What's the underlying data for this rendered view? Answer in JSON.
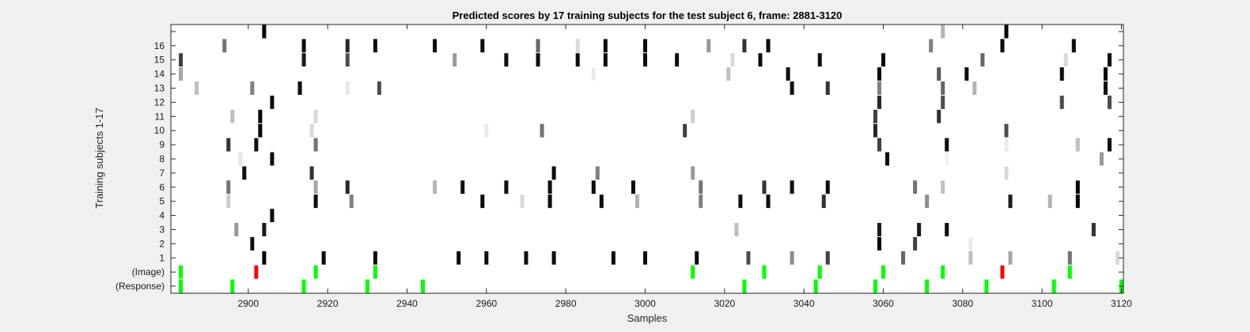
{
  "chart_data": {
    "type": "heatmap",
    "title": "Predicted scores by 17 training subjects for the test subject 6, frame: 2881-3120",
    "xlabel": "Samples",
    "ylabel": "Training subjects 1-17",
    "xlim": [
      2881,
      3120
    ],
    "x_ticks": [
      2900,
      2920,
      2940,
      2960,
      2980,
      3000,
      3020,
      3040,
      3060,
      3080,
      3100,
      3120
    ],
    "y_tick_labels": [
      "(Response)",
      "(Image)",
      "1",
      "2",
      "3",
      "4",
      "5",
      "6",
      "7",
      "8",
      "9",
      "10",
      "11",
      "12",
      "13",
      "14",
      "15",
      "16",
      ""
    ],
    "grid": false,
    "colors": {
      "background": "#f0f0f0",
      "plot_background": "#ffffff",
      "green": "#00ff00",
      "red": "#ff0000",
      "text": "#1a1a1a",
      "axis": "#262626"
    },
    "green_red_rows": {
      "response": [
        {
          "x": 2883,
          "color": "green"
        },
        {
          "x": 2896,
          "color": "green"
        },
        {
          "x": 2914,
          "color": "green"
        },
        {
          "x": 2930,
          "color": "green"
        },
        {
          "x": 2944,
          "color": "green"
        },
        {
          "x": 3025,
          "color": "green"
        },
        {
          "x": 3043,
          "color": "green"
        },
        {
          "x": 3058,
          "color": "green"
        },
        {
          "x": 3071,
          "color": "green"
        },
        {
          "x": 3086,
          "color": "green"
        },
        {
          "x": 3103,
          "color": "green"
        },
        {
          "x": 3120,
          "color": "green"
        }
      ],
      "image": [
        {
          "x": 2883,
          "color": "green"
        },
        {
          "x": 2902,
          "color": "red"
        },
        {
          "x": 2917,
          "color": "green"
        },
        {
          "x": 2932,
          "color": "green"
        },
        {
          "x": 3012,
          "color": "green"
        },
        {
          "x": 3030,
          "color": "green"
        },
        {
          "x": 3044,
          "color": "green"
        },
        {
          "x": 3060,
          "color": "green"
        },
        {
          "x": 3075,
          "color": "green"
        },
        {
          "x": 3090,
          "color": "red"
        },
        {
          "x": 3107,
          "color": "green"
        }
      ]
    },
    "subject_rows": [
      {
        "row": 1,
        "cells": [
          [
            2904,
            0.02
          ],
          [
            2919,
            0.05
          ],
          [
            2932,
            0.05
          ],
          [
            2953,
            0.05
          ],
          [
            2960,
            0.05
          ],
          [
            2970,
            0.05
          ],
          [
            2977,
            0.05
          ],
          [
            2992,
            0.05
          ],
          [
            3000,
            0.05
          ],
          [
            3013,
            0.05
          ],
          [
            3026,
            0.3
          ],
          [
            3037,
            0.55
          ],
          [
            3046,
            0.25
          ],
          [
            3065,
            0.4
          ],
          [
            3082,
            0.75
          ],
          [
            3092,
            0.65
          ],
          [
            3107,
            0.45
          ],
          [
            3119,
            0.85
          ]
        ]
      },
      {
        "row": 2,
        "cells": [
          [
            2901,
            0.05
          ],
          [
            3059,
            0.02
          ],
          [
            3068,
            0.25
          ],
          [
            3082,
            0.92
          ]
        ]
      },
      {
        "row": 3,
        "cells": [
          [
            2897,
            0.6
          ],
          [
            2904,
            0.1
          ],
          [
            3023,
            0.75
          ],
          [
            3059,
            0.1
          ],
          [
            3069,
            0.1
          ],
          [
            3076,
            0.05
          ],
          [
            3113,
            0.2
          ]
        ]
      },
      {
        "row": 4,
        "cells": [
          [
            2906,
            0.02
          ]
        ]
      },
      {
        "row": 5,
        "cells": [
          [
            2895,
            0.8
          ],
          [
            2917,
            0.05
          ],
          [
            2926,
            0.5
          ],
          [
            2959,
            0.05
          ],
          [
            2969,
            0.85
          ],
          [
            2976,
            0.05
          ],
          [
            2989,
            0.05
          ],
          [
            2998,
            0.7
          ],
          [
            3014,
            0.5
          ],
          [
            3024,
            0.05
          ],
          [
            3031,
            0.05
          ],
          [
            3045,
            0.2
          ],
          [
            3071,
            0.55
          ],
          [
            3092,
            0.1
          ],
          [
            3102,
            0.7
          ],
          [
            3109,
            0.02
          ]
        ]
      },
      {
        "row": 6,
        "cells": [
          [
            2895,
            0.45
          ],
          [
            2917,
            0.65
          ],
          [
            2925,
            0.15
          ],
          [
            2947,
            0.7
          ],
          [
            2954,
            0.05
          ],
          [
            2965,
            0.05
          ],
          [
            2976,
            0.05
          ],
          [
            2987,
            0.05
          ],
          [
            2997,
            0.05
          ],
          [
            3014,
            0.45
          ],
          [
            3030,
            0.2
          ],
          [
            3037,
            0.05
          ],
          [
            3046,
            0.05
          ],
          [
            3068,
            0.45
          ],
          [
            3075,
            0.75
          ],
          [
            3109,
            0.02
          ]
        ]
      },
      {
        "row": 7,
        "cells": [
          [
            2899,
            0.05
          ],
          [
            2916,
            0.2
          ],
          [
            2977,
            0.05
          ],
          [
            2988,
            0.5
          ],
          [
            3012,
            0.6
          ],
          [
            3091,
            0.85
          ]
        ]
      },
      {
        "row": 8,
        "cells": [
          [
            2898,
            0.9
          ],
          [
            2906,
            0.05
          ],
          [
            3061,
            0.05
          ],
          [
            3076,
            0.95
          ],
          [
            3115,
            0.6
          ]
        ]
      },
      {
        "row": 9,
        "cells": [
          [
            2895,
            0.2
          ],
          [
            2902,
            0.05
          ],
          [
            2917,
            0.45
          ],
          [
            3059,
            0.25
          ],
          [
            3076,
            0.05
          ],
          [
            3091,
            0.92
          ],
          [
            3109,
            0.75
          ],
          [
            3117,
            0.05
          ]
        ]
      },
      {
        "row": 10,
        "cells": [
          [
            2903,
            0.02
          ],
          [
            2916,
            0.85
          ],
          [
            2960,
            0.92
          ],
          [
            2974,
            0.45
          ],
          [
            3010,
            0.25
          ],
          [
            3058,
            0.15
          ],
          [
            3091,
            0.3
          ]
        ]
      },
      {
        "row": 11,
        "cells": [
          [
            2896,
            0.75
          ],
          [
            2903,
            0.02
          ],
          [
            2917,
            0.85
          ],
          [
            3012,
            0.8
          ],
          [
            3058,
            0.25
          ],
          [
            3074,
            0.2
          ]
        ]
      },
      {
        "row": 12,
        "cells": [
          [
            2906,
            0.05
          ],
          [
            3059,
            0.15
          ],
          [
            3075,
            0.3
          ],
          [
            3105,
            0.3
          ],
          [
            3117,
            0.3
          ]
        ]
      },
      {
        "row": 13,
        "cells": [
          [
            2887,
            0.75
          ],
          [
            2901,
            0.5
          ],
          [
            2913,
            0.05
          ],
          [
            2925,
            0.9
          ],
          [
            2933,
            0.3
          ],
          [
            3037,
            0.05
          ],
          [
            3046,
            0.2
          ],
          [
            3059,
            0.5
          ],
          [
            3075,
            0.4
          ],
          [
            3083,
            0.7
          ],
          [
            3116,
            0.05
          ]
        ]
      },
      {
        "row": 14,
        "cells": [
          [
            2883,
            0.65
          ],
          [
            2987,
            0.92
          ],
          [
            3021,
            0.75
          ],
          [
            3036,
            0.05
          ],
          [
            3059,
            0.05
          ],
          [
            3074,
            0.35
          ],
          [
            3081,
            0.05
          ],
          [
            3105,
            0.05
          ],
          [
            3116,
            0.05
          ]
        ]
      },
      {
        "row": 15,
        "cells": [
          [
            2883,
            0.25
          ],
          [
            2914,
            0.1
          ],
          [
            2925,
            0.3
          ],
          [
            2952,
            0.6
          ],
          [
            2965,
            0.05
          ],
          [
            2973,
            0.05
          ],
          [
            2983,
            0.05
          ],
          [
            2990,
            0.05
          ],
          [
            3000,
            0.05
          ],
          [
            3008,
            0.05
          ],
          [
            3022,
            0.85
          ],
          [
            3029,
            0.05
          ],
          [
            3044,
            0.05
          ],
          [
            3060,
            0.05
          ],
          [
            3085,
            0.4
          ],
          [
            3106,
            0.85
          ],
          [
            3117,
            0.05
          ]
        ]
      },
      {
        "row": 16,
        "cells": [
          [
            2894,
            0.45
          ],
          [
            2914,
            0.05
          ],
          [
            2925,
            0.15
          ],
          [
            2932,
            0.05
          ],
          [
            2947,
            0.05
          ],
          [
            2959,
            0.05
          ],
          [
            2973,
            0.4
          ],
          [
            2983,
            0.85
          ],
          [
            2990,
            0.05
          ],
          [
            3000,
            0.05
          ],
          [
            3016,
            0.6
          ],
          [
            3025,
            0.2
          ],
          [
            3031,
            0.05
          ],
          [
            3072,
            0.5
          ],
          [
            3090,
            0.05
          ],
          [
            3108,
            0.05
          ]
        ]
      },
      {
        "row": 17,
        "cells": [
          [
            2904,
            0.02
          ],
          [
            3075,
            0.7
          ],
          [
            3091,
            0.02
          ]
        ]
      }
    ]
  }
}
